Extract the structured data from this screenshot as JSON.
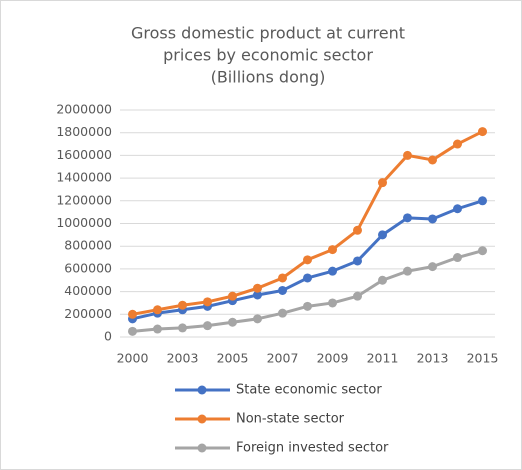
{
  "chart_data": {
    "type": "line",
    "title": [
      "Gross domestic product at current",
      "prices by economic sector",
      "(Billions dong)"
    ],
    "categories": [
      "2000",
      null,
      "2003",
      null,
      "2005",
      null,
      "2007",
      null,
      "2009",
      null,
      "2011",
      null,
      "2013",
      null,
      "2015"
    ],
    "series": [
      {
        "name": "State economic sector",
        "color": "#4472c4",
        "values": [
          160000,
          210000,
          240000,
          270000,
          320000,
          370000,
          410000,
          520000,
          580000,
          670000,
          900000,
          1050000,
          1040000,
          1130000,
          1200000
        ]
      },
      {
        "name": "Non-state sector",
        "color": "#ed7d31",
        "values": [
          200000,
          240000,
          280000,
          310000,
          360000,
          430000,
          520000,
          680000,
          770000,
          940000,
          1360000,
          1600000,
          1560000,
          1700000,
          1810000
        ]
      },
      {
        "name": "Foreign invested sector",
        "color": "#a5a5a5",
        "values": [
          50000,
          70000,
          80000,
          100000,
          130000,
          160000,
          210000,
          270000,
          300000,
          360000,
          500000,
          580000,
          620000,
          700000,
          760000
        ]
      }
    ],
    "ylim": [
      0,
      2000000
    ],
    "yticks": [
      0,
      200000,
      400000,
      600000,
      800000,
      1000000,
      1200000,
      1400000,
      1600000,
      1800000,
      2000000
    ],
    "grid": true,
    "legend": "bottom"
  }
}
